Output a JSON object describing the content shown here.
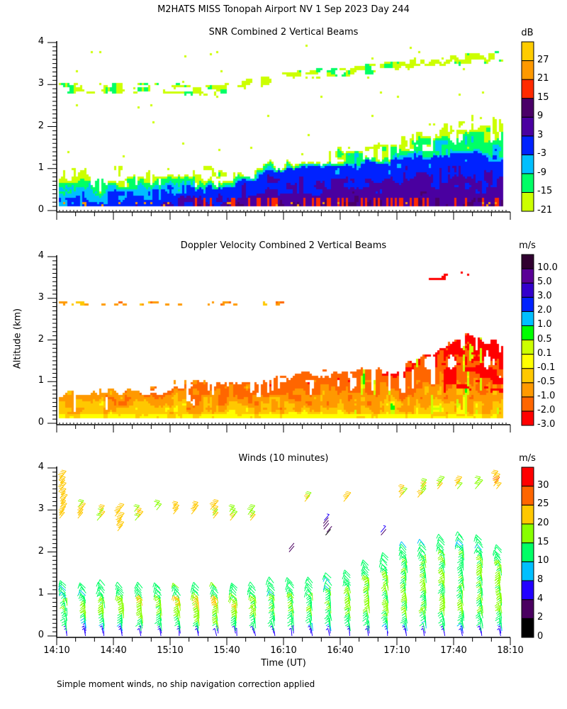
{
  "main_title": "M2HATS MISS Tonopah Airport NV   1 Sep 2023 Day 244",
  "y_axis_label": "Altitude (km)",
  "x_axis_label": "Time (UT)",
  "footnote": "Simple moment winds, no ship navigation correction applied",
  "chart_data": [
    {
      "type": "heatmap",
      "id": "snr",
      "title": "SNR Combined 2 Vertical Beams",
      "ylabel": "Altitude (km)",
      "ylim": [
        0,
        4
      ],
      "yticks": [
        "0",
        "1",
        "2",
        "3",
        "4"
      ],
      "xlim": [
        "14:10",
        "18:10"
      ],
      "colorbar": {
        "units": "dB",
        "levels": [
          -21,
          -15,
          -9,
          -3,
          3,
          9,
          15,
          21,
          27
        ],
        "labels": [
          "-21",
          "-15",
          "-9",
          "-3",
          "3",
          "9",
          "15",
          "21",
          "27"
        ],
        "colors": [
          "#ccff00",
          "#00ff66",
          "#00bfff",
          "#0022ff",
          "#4a00a0",
          "#4a0068",
          "#ff2a00",
          "#ff9900",
          "#ffcc00"
        ]
      },
      "features": {
        "time_fraction": [
          0,
          0.35,
          0.5,
          0.7,
          0.85,
          1
        ],
        "echo_top_km": [
          0.9,
          0.9,
          1.1,
          1.5,
          2.0,
          2.3
        ],
        "strong_layer_top_km": [
          0.5,
          0.55,
          0.95,
          1.2,
          1.35,
          1.4
        ],
        "elevated_layer_km": [
          2.95,
          2.9,
          3.2,
          3.4,
          3.6,
          3.7
        ]
      }
    },
    {
      "type": "heatmap",
      "id": "doppler",
      "title": "Doppler Velocity Combined 2 Vertical Beams",
      "ylabel": "Altitude (km)",
      "ylim": [
        0,
        4
      ],
      "yticks": [
        "0",
        "1",
        "2",
        "3",
        "4"
      ],
      "xlim": [
        "14:10",
        "18:10"
      ],
      "colorbar": {
        "units": "m/s",
        "levels": [
          -3.0,
          -2.0,
          -1.0,
          -0.5,
          -0.1,
          0.1,
          0.5,
          1.0,
          2.0,
          3.0,
          5.0,
          10.0
        ],
        "labels": [
          "-3.0",
          "-2.0",
          "-1.0",
          "-0.5",
          "-0.1",
          "0.1",
          "0.5",
          "1.0",
          "2.0",
          "3.0",
          "5.0",
          "10.0"
        ],
        "colors": [
          "#ff0000",
          "#ff6600",
          "#ff9900",
          "#ffc800",
          "#ffff00",
          "#ccff00",
          "#00ff00",
          "#00bfff",
          "#0022ff",
          "#3300cc",
          "#5a0096",
          "#300030"
        ]
      },
      "features": {
        "time_fraction": [
          0,
          0.25,
          0.5,
          0.75,
          0.9,
          1
        ],
        "echo_top_km": [
          0.65,
          0.85,
          1.15,
          1.35,
          2.1,
          1.8
        ],
        "elevated_layer_km": [
          2.9,
          2.9,
          2.9,
          3.4,
          3.6,
          3.7
        ]
      }
    },
    {
      "type": "wind_barbs",
      "id": "winds",
      "title": "Winds (10 minutes)",
      "ylabel": "Altitude (km)",
      "xlabel": "Time (UT)",
      "ylim": [
        0,
        4
      ],
      "yticks": [
        "0",
        "1",
        "2",
        "3",
        "4"
      ],
      "xticks": [
        "14:10",
        "14:40",
        "15:10",
        "15:40",
        "16:10",
        "16:40",
        "17:10",
        "17:40",
        "18:10"
      ],
      "colorbar": {
        "units": "m/s",
        "levels": [
          0,
          2,
          4,
          8,
          10,
          15,
          20,
          25,
          30
        ],
        "labels": [
          "0",
          "2",
          "4",
          "8",
          "10",
          "15",
          "20",
          "25",
          "30"
        ],
        "colors": [
          "#000000",
          "#4a0060",
          "#2200ff",
          "#00bfff",
          "#00ff66",
          "#88ff00",
          "#ffc800",
          "#ff6600",
          "#ff0000"
        ]
      },
      "columns": {
        "times": [
          "14:15",
          "14:25",
          "14:35",
          "14:45",
          "14:55",
          "15:05",
          "15:15",
          "15:25",
          "15:35",
          "15:45",
          "15:55",
          "16:05",
          "16:15",
          "16:25",
          "16:35",
          "16:45",
          "16:55",
          "17:05",
          "17:15",
          "17:25",
          "17:35",
          "17:45",
          "17:55",
          "18:05"
        ],
        "low_top_km": [
          1.25,
          1.2,
          1.25,
          1.2,
          1.2,
          1.2,
          1.2,
          1.2,
          1.2,
          1.15,
          1.2,
          1.3,
          1.3,
          1.3,
          1.4,
          1.5,
          1.7,
          1.9,
          2.15,
          2.2,
          2.3,
          2.4,
          2.3,
          2.05
        ],
        "upper_layer_km": [
          [
            2.8,
            3.8
          ],
          [
            2.8,
            3.1
          ],
          [
            2.75,
            3.0
          ],
          [
            2.5,
            3.0
          ],
          [
            2.75,
            3.0
          ],
          [
            3.0,
            3.1
          ],
          [
            2.9,
            3.1
          ],
          [
            2.9,
            3.1
          ],
          [
            2.8,
            3.1
          ],
          [
            2.75,
            3.0
          ],
          [
            2.75,
            3.0
          ],
          null,
          [
            2.0,
            2.1
          ],
          [
            3.2,
            3.3
          ],
          [
            2.4,
            2.8
          ],
          [
            3.2,
            3.3
          ],
          null,
          [
            2.4,
            2.5
          ],
          [
            3.3,
            3.5
          ],
          [
            3.3,
            3.6
          ],
          [
            3.5,
            3.7
          ],
          [
            3.5,
            3.7
          ],
          [
            3.5,
            3.7
          ],
          [
            3.5,
            3.8
          ]
        ],
        "upper_speed_ms": [
          22,
          21,
          20,
          22,
          19,
          18,
          21,
          22,
          21,
          20,
          19,
          null,
          3,
          21,
          3,
          21,
          null,
          4,
          21,
          20,
          21,
          21,
          21,
          24
        ],
        "low_speed_ms": [
          15,
          15,
          16,
          17,
          18,
          17,
          19,
          20,
          19,
          18,
          16,
          15,
          16,
          15,
          15,
          16,
          16,
          16,
          15,
          15,
          15,
          15,
          15,
          16
        ]
      }
    }
  ]
}
